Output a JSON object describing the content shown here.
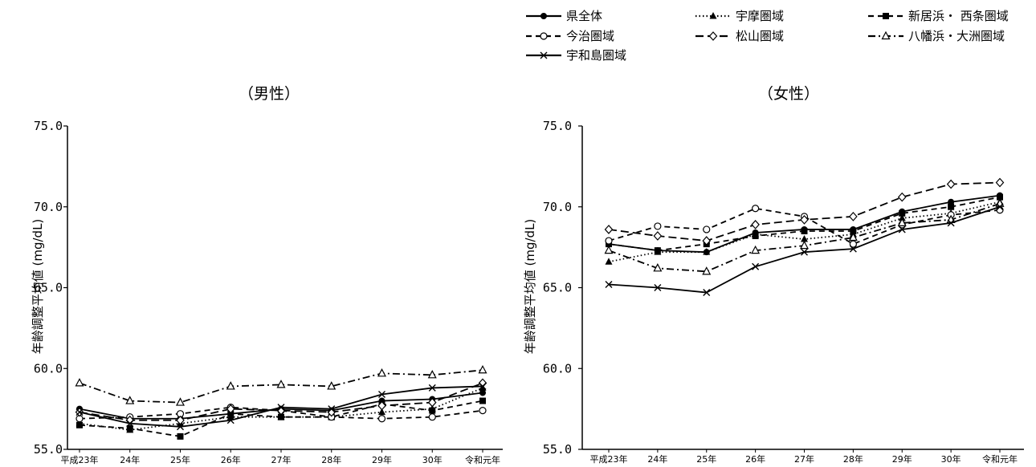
{
  "legend": [
    {
      "name": "県全体",
      "style": "solid",
      "marker": "dot"
    },
    {
      "name": "宇摩圏域",
      "style": "dotted",
      "marker": "tri"
    },
    {
      "name": "新居浜・ 西条圏域",
      "style": "dashed",
      "marker": "square"
    },
    {
      "name": "今治圏域",
      "style": "dashed",
      "marker": "circle-open"
    },
    {
      "name": "松山圏域",
      "style": "longdash",
      "marker": "diamond-open"
    },
    {
      "name": "八幡浜・大洲圏域",
      "style": "dashdot",
      "marker": "tri-open"
    },
    {
      "name": "宇和島圏域",
      "style": "solid",
      "marker": "x"
    }
  ],
  "chart_data": [
    {
      "type": "line",
      "title": "（男性）",
      "ylabel": "年齢調整平均値 (mg/dL)",
      "categories": [
        "平成23年",
        "24年",
        "25年",
        "26年",
        "27年",
        "28年",
        "29年",
        "30年",
        "令和元年"
      ],
      "ylim": [
        55.0,
        75.0
      ],
      "yticks": [
        "55.0",
        "60.0",
        "65.0",
        "70.0",
        "75.0"
      ],
      "series": [
        {
          "name": "県全体",
          "values": [
            57.5,
            56.9,
            56.9,
            57.2,
            57.5,
            57.4,
            58.0,
            58.1,
            58.5
          ]
        },
        {
          "name": "宇摩圏域",
          "values": [
            56.6,
            56.2,
            56.6,
            57.0,
            57.0,
            57.0,
            57.3,
            57.5,
            58.8
          ]
        },
        {
          "name": "新居浜・ 西条圏域",
          "values": [
            56.5,
            56.3,
            55.8,
            57.2,
            57.0,
            57.0,
            57.8,
            57.4,
            58.0
          ]
        },
        {
          "name": "今治圏域",
          "values": [
            56.9,
            57.0,
            57.2,
            57.6,
            57.4,
            57.0,
            56.9,
            57.0,
            57.4
          ]
        },
        {
          "name": "松山圏域",
          "values": [
            57.3,
            56.8,
            56.8,
            57.5,
            57.4,
            57.3,
            57.7,
            57.9,
            59.1
          ]
        },
        {
          "name": "八幡浜・大洲圏域",
          "values": [
            59.1,
            58.0,
            57.9,
            58.9,
            59.0,
            58.9,
            59.7,
            59.6,
            59.9
          ]
        },
        {
          "name": "宇和島圏域",
          "values": [
            57.3,
            56.6,
            56.4,
            56.8,
            57.6,
            57.5,
            58.4,
            58.8,
            58.9
          ]
        }
      ]
    },
    {
      "type": "line",
      "title": "（女性）",
      "ylabel": "年齢調整平均値 (mg/dL)",
      "categories": [
        "平成23年",
        "24年",
        "25年",
        "26年",
        "27年",
        "28年",
        "29年",
        "30年",
        "令和元年"
      ],
      "ylim": [
        55.0,
        75.0
      ],
      "yticks": [
        "55.0",
        "60.0",
        "65.0",
        "70.0",
        "75.0"
      ],
      "series": [
        {
          "name": "県全体",
          "values": [
            67.7,
            67.3,
            67.2,
            68.4,
            68.6,
            68.6,
            69.7,
            70.3,
            70.7
          ]
        },
        {
          "name": "宇摩圏域",
          "values": [
            66.6,
            67.2,
            67.2,
            68.3,
            68.0,
            68.3,
            69.3,
            69.6,
            70.3
          ]
        },
        {
          "name": "新居浜・ 西条圏域",
          "values": [
            67.7,
            67.3,
            67.7,
            68.2,
            68.5,
            68.5,
            69.6,
            70.0,
            70.6
          ]
        },
        {
          "name": "今治圏域",
          "values": [
            67.9,
            68.8,
            68.6,
            69.9,
            69.4,
            67.7,
            68.9,
            69.5,
            69.8
          ]
        },
        {
          "name": "松山圏域",
          "values": [
            68.6,
            68.2,
            67.9,
            68.9,
            69.2,
            69.4,
            70.6,
            71.4,
            71.5
          ]
        },
        {
          "name": "八幡浜・大洲圏域",
          "values": [
            67.3,
            66.2,
            66.0,
            67.3,
            67.6,
            68.1,
            69.0,
            69.2,
            70.2
          ]
        },
        {
          "name": "宇和島圏域",
          "values": [
            65.2,
            65.0,
            64.7,
            66.3,
            67.2,
            67.4,
            68.6,
            69.0,
            70.0
          ]
        }
      ]
    }
  ]
}
